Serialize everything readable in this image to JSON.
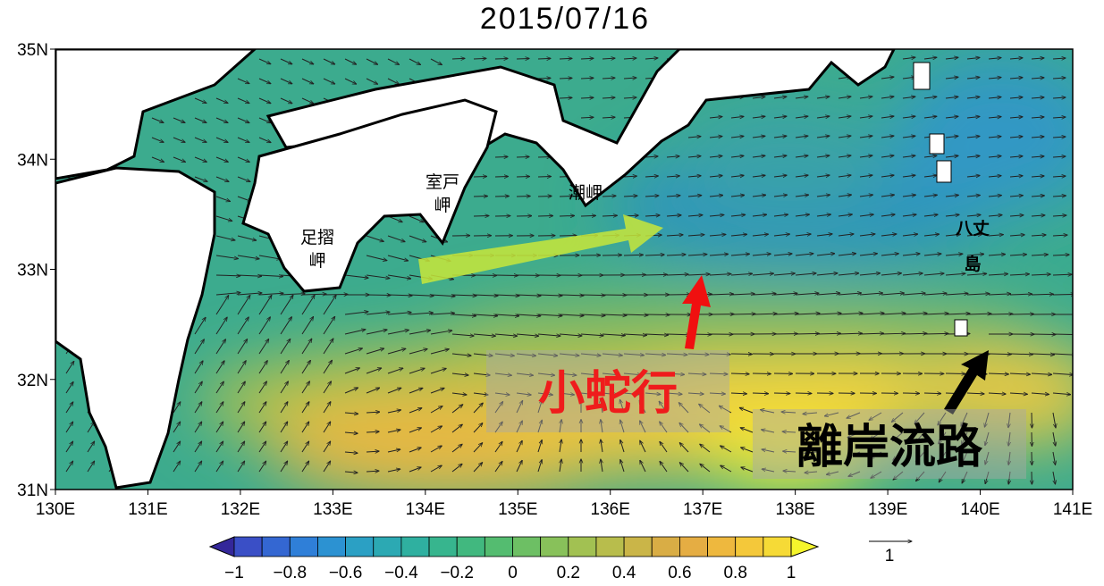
{
  "title": "2015/07/16",
  "lat_ticks": [
    "35N",
    "34N",
    "33N",
    "32N",
    "31N"
  ],
  "lon_ticks": [
    "130E",
    "131E",
    "132E",
    "133E",
    "134E",
    "135E",
    "136E",
    "137E",
    "138E",
    "139E",
    "140E",
    "141E"
  ],
  "places": [
    {
      "lines": [
        "足摺",
        "岬"
      ]
    },
    {
      "lines": [
        "室戸",
        "岬"
      ]
    },
    {
      "lines": [
        "潮岬"
      ]
    },
    {
      "lines": [
        "八丈",
        "島"
      ]
    }
  ],
  "annotations": {
    "meander": "小蛇行",
    "offshore": "離岸流路"
  },
  "colorbar_ticks": [
    "−1",
    "−0.8",
    "−0.6",
    "−0.4",
    "−0.2",
    "0",
    "0.2",
    "0.4",
    "0.6",
    "0.8",
    "1"
  ],
  "reference_vector": "1"
}
